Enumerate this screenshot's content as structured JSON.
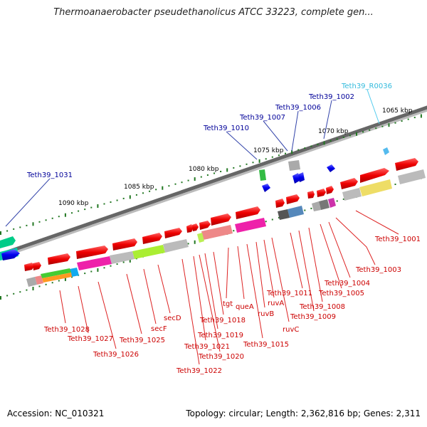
{
  "title": "Thermoanaerobacter pseudethanolicus ATCC 33223, complete gen...",
  "footer": {
    "accession": "Accession: NC_010321",
    "summary": "Topology: circular; Length: 2,362,816 bp; Genes: 2,311"
  },
  "scale_labels": [
    "1065 kbp",
    "1070 kbp",
    "1075 kbp",
    "1080 kbp",
    "1085 kbp",
    "1090 kbp"
  ],
  "top_labels": [
    {
      "text": "Teth39_R0036",
      "color": "#33bbdd"
    },
    {
      "text": "Teth39_1002",
      "color": "#000099"
    },
    {
      "text": "Teth39_1006",
      "color": "#000099"
    },
    {
      "text": "Teth39_1007",
      "color": "#000099"
    },
    {
      "text": "Teth39_1010",
      "color": "#000099"
    },
    {
      "text": "Teth39_1031",
      "color": "#000099"
    }
  ],
  "bottom_labels": [
    "Teth39_1001",
    "Teth39_1003",
    "Teth39_1004",
    "Teth39_1005",
    "Teth39_1008",
    "Teth39_1009",
    "Teth39_1011",
    "ruvC",
    "ruvA",
    "ruvB",
    "Teth39_1015",
    "queA",
    "tgt",
    "Teth39_1018",
    "Teth39_1019",
    "Teth39_1020",
    "Teth39_1021",
    "Teth39_1022",
    "secD",
    "secF",
    "Teth39_1025",
    "Teth39_1026",
    "Teth39_1027",
    "Teth39_1028"
  ],
  "colors": {
    "label_red": "#dd0000",
    "label_blue": "#000099",
    "label_cyan": "#33bbdd",
    "gene_red": "#ee0000",
    "gene_blue": "#0000ee",
    "backbone": "#777777",
    "tick_green": "#227722"
  }
}
